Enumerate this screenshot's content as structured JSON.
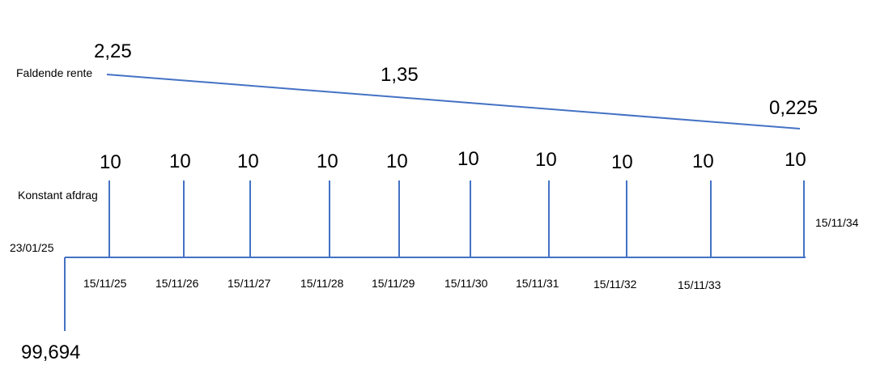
{
  "colors": {
    "line": "#4472c4",
    "text": "#000000",
    "background": "#ffffff"
  },
  "rate": {
    "label": "Faldende rente",
    "start_value": "2,25",
    "mid_value": "1,35",
    "end_value": "0,225"
  },
  "payments": {
    "label": "Konstant afdrag",
    "amounts": [
      "10",
      "10",
      "10",
      "10",
      "10",
      "10",
      "10",
      "10",
      "10",
      "10"
    ]
  },
  "timeline": {
    "start_date": "23/01/25",
    "initial_amount": "99,694",
    "dates": [
      "15/11/25",
      "15/11/26",
      "15/11/27",
      "15/11/28",
      "15/11/29",
      "15/11/30",
      "15/11/31",
      "15/11/32",
      "15/11/33",
      "15/11/34"
    ]
  }
}
